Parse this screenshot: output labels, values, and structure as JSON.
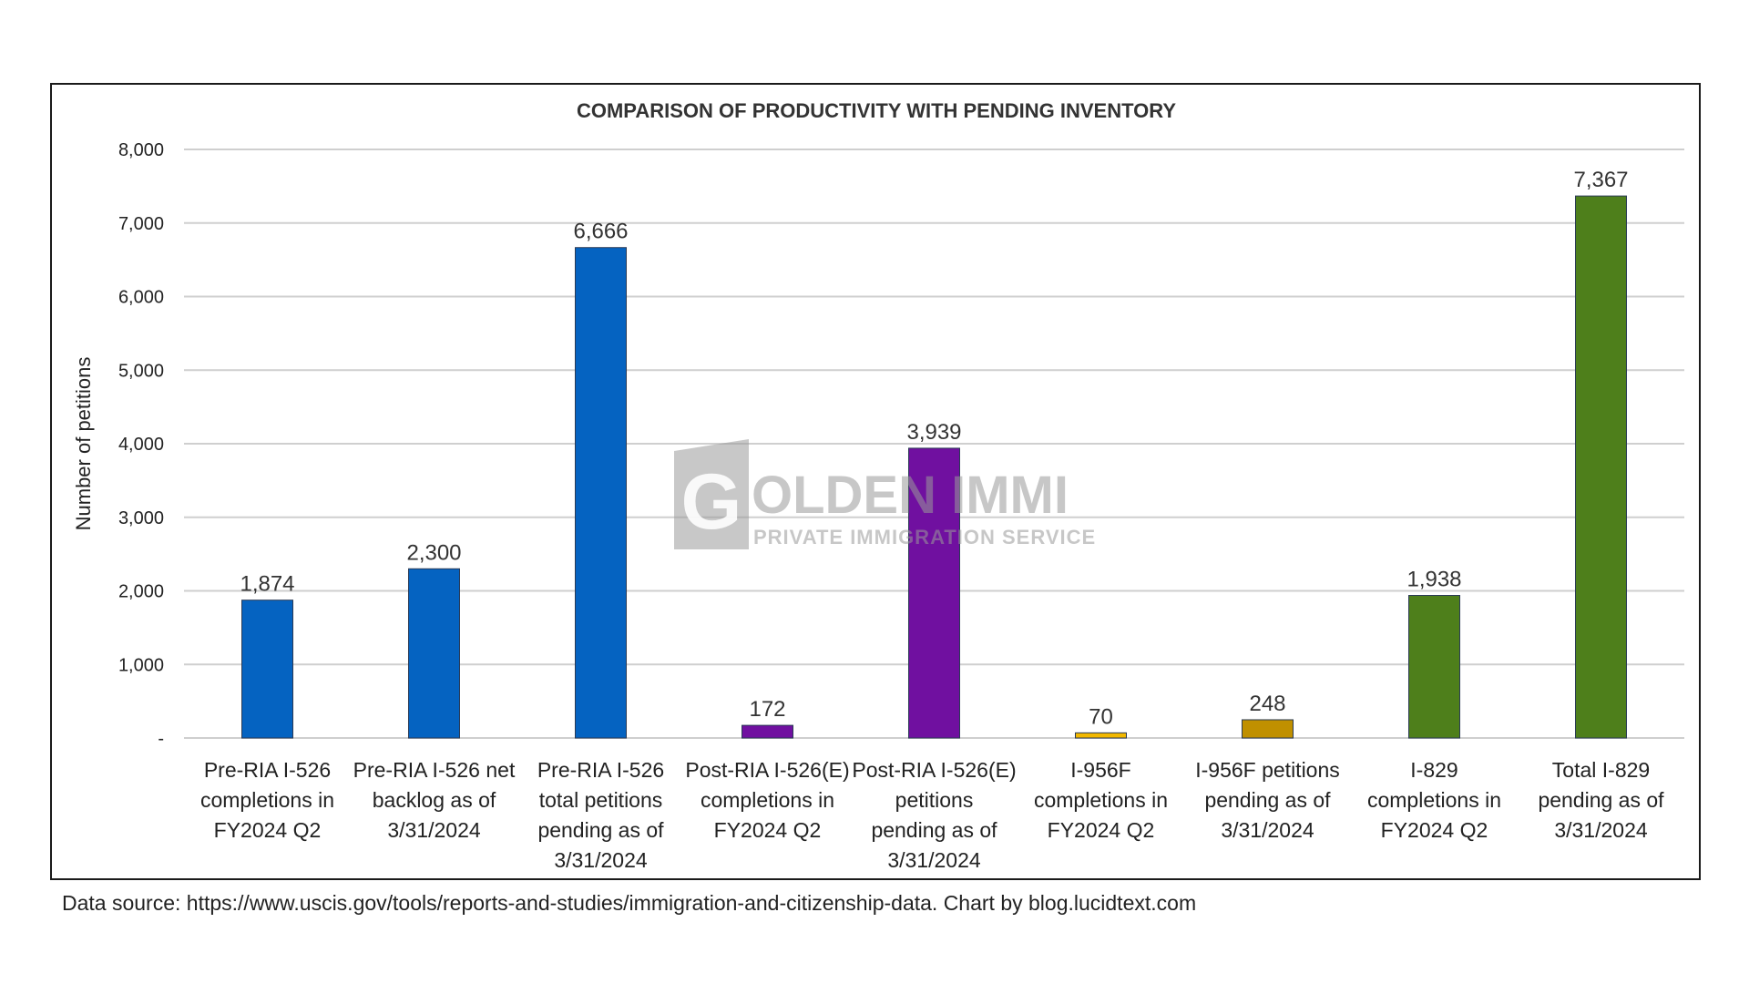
{
  "chart_data": {
    "type": "bar",
    "title": "COMPARISON OF  PRODUCTIVITY WITH PENDING INVENTORY",
    "ylabel": "Number of petitions",
    "xlabel": "",
    "ylim": [
      0,
      8000
    ],
    "yticks": [
      0,
      1000,
      2000,
      3000,
      4000,
      5000,
      6000,
      7000,
      8000
    ],
    "ytick_labels": [
      "-",
      "1,000",
      "2,000",
      "3,000",
      "4,000",
      "5,000",
      "6,000",
      "7,000",
      "8,000"
    ],
    "grid": true,
    "categories": [
      [
        "Pre-RIA I-526",
        "completions in",
        "FY2024 Q2"
      ],
      [
        "Pre-RIA I-526 net",
        "backlog as of",
        "3/31/2024"
      ],
      [
        "Pre-RIA I-526",
        "total petitions",
        "pending as of",
        "3/31/2024"
      ],
      [
        "Post-RIA I-526(E)",
        "completions in",
        "FY2024 Q2"
      ],
      [
        "Post-RIA I-526(E)",
        "petitions",
        "pending as of",
        "3/31/2024"
      ],
      [
        "I-956F",
        "completions in",
        "FY2024 Q2"
      ],
      [
        "I-956F petitions",
        "pending as of",
        "3/31/2024"
      ],
      [
        "I-829",
        "completions in",
        "FY2024 Q2"
      ],
      [
        "Total I-829",
        "pending as of",
        "3/31/2024"
      ]
    ],
    "values": [
      1874,
      2300,
      6666,
      172,
      3939,
      70,
      248,
      1938,
      7367
    ],
    "value_labels": [
      "1,874",
      "2,300",
      "6,666",
      "172",
      "3,939",
      "70",
      "248",
      "1,938",
      "7,367"
    ],
    "colors": [
      "#0563C1",
      "#0563C1",
      "#0563C1",
      "#7010A0",
      "#7010A0",
      "#F2B800",
      "#C09000",
      "#4E7F1B",
      "#4E7F1B"
    ]
  },
  "watermark": {
    "letter": "G",
    "name": "OLDEN IMMI",
    "tagline": "PRIVATE IMMIGRATION SERVICE",
    "color": "#9a9a9a"
  },
  "footer": {
    "source": "Data source: https://www.uscis.gov/tools/reports-and-studies/immigration-and-citizenship-data. Chart by blog.lucidtext.com"
  }
}
